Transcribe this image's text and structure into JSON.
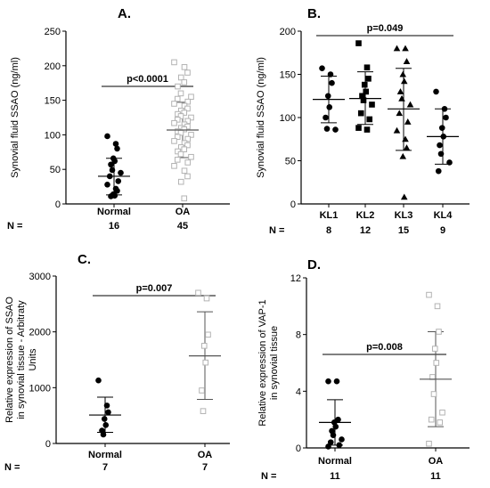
{
  "chart_data": [
    {
      "id": "A",
      "type": "scatter",
      "panel_label": "A.",
      "ylabel": "Synovial fluid SSAO (ng/ml)",
      "ylim": [
        0,
        250
      ],
      "yticks": [
        0,
        50,
        100,
        150,
        200,
        250
      ],
      "categories": [
        "Normal",
        "OA"
      ],
      "n_label": "N =",
      "n_values": [
        "16",
        "45"
      ],
      "significance": [
        {
          "text": "p<0.0001",
          "from": 0,
          "to": 1
        }
      ],
      "series": [
        {
          "category": "Normal",
          "marker": "circle-filled",
          "mean": 40,
          "sd_low": 13,
          "sd_high": 66,
          "values": [
            98,
            87,
            80,
            66,
            62,
            57,
            49,
            45,
            40,
            33,
            28,
            22,
            19,
            14,
            12,
            11
          ]
        },
        {
          "category": "OA",
          "marker": "square-open",
          "mean": 107,
          "sd_low": 67,
          "sd_high": 147,
          "values": [
            205,
            198,
            190,
            183,
            176,
            170,
            160,
            155,
            152,
            148,
            145,
            142,
            138,
            135,
            132,
            130,
            127,
            125,
            122,
            120,
            117,
            115,
            112,
            110,
            108,
            105,
            103,
            100,
            97,
            94,
            91,
            88,
            85,
            82,
            79,
            76,
            72,
            68,
            64,
            60,
            55,
            48,
            40,
            32,
            8
          ]
        }
      ]
    },
    {
      "id": "B",
      "type": "scatter",
      "panel_label": "B.",
      "ylabel": "Synovial fluid SSAO (ng/ml)",
      "ylim": [
        0,
        200
      ],
      "yticks": [
        0,
        50,
        100,
        150,
        200
      ],
      "categories": [
        "KL1",
        "KL2",
        "KL3",
        "KL4"
      ],
      "n_label": "N =",
      "n_values": [
        "8",
        "12",
        "15",
        "9"
      ],
      "significance": [
        {
          "text": "p=0.049",
          "from": 0,
          "to": 3
        }
      ],
      "series": [
        {
          "category": "KL1",
          "marker": "circle-filled",
          "mean": 121,
          "sd_low": 94,
          "sd_high": 148,
          "values": [
            157,
            150,
            140,
            125,
            112,
            100,
            87,
            86
          ]
        },
        {
          "category": "KL2",
          "marker": "square-filled",
          "mean": 122,
          "sd_low": 92,
          "sd_high": 153,
          "values": [
            186,
            158,
            145,
            138,
            130,
            125,
            120,
            115,
            105,
            98,
            88,
            86
          ]
        },
        {
          "category": "KL3",
          "marker": "triangle-filled",
          "mean": 110,
          "sd_low": 62,
          "sd_high": 157,
          "values": [
            180,
            180,
            165,
            150,
            142,
            130,
            122,
            115,
            105,
            95,
            85,
            75,
            65,
            55,
            8
          ]
        },
        {
          "category": "KL4",
          "marker": "circle-filled",
          "mean": 78,
          "sd_low": 46,
          "sd_high": 110,
          "values": [
            130,
            110,
            100,
            88,
            78,
            68,
            58,
            48,
            38
          ]
        }
      ]
    },
    {
      "id": "C",
      "type": "scatter",
      "panel_label": "C.",
      "ylabel_lines": [
        "Relative expression of SSAO",
        "in synovial tissue - Arbitraty",
        "Units"
      ],
      "ylim": [
        0,
        3000
      ],
      "yticks": [
        0,
        1000,
        2000,
        3000
      ],
      "categories": [
        "Normal",
        "OA"
      ],
      "n_label": "N =",
      "n_values": [
        "7",
        "7"
      ],
      "significance": [
        {
          "text": "p=0.007",
          "from": 0,
          "to": 1
        }
      ],
      "series": [
        {
          "category": "Normal",
          "marker": "circle-filled",
          "mean": 510,
          "sd_low": 200,
          "sd_high": 830,
          "values": [
            1130,
            680,
            560,
            440,
            330,
            230,
            160
          ]
        },
        {
          "category": "OA",
          "marker": "square-open",
          "mean": 1570,
          "sd_low": 790,
          "sd_high": 2360,
          "values": [
            2700,
            2600,
            1950,
            1750,
            1450,
            950,
            580
          ]
        }
      ]
    },
    {
      "id": "D",
      "type": "scatter",
      "panel_label": "D.",
      "ylabel_lines": [
        "Relative expression of VAP-1",
        "in synovial tissue"
      ],
      "ylim": [
        0,
        12
      ],
      "yticks": [
        0,
        4,
        8,
        12
      ],
      "categories": [
        "Normal",
        "OA"
      ],
      "n_label": "N =",
      "n_values": [
        "11",
        "11"
      ],
      "significance": [
        {
          "text": "p=0.008",
          "from": 0,
          "to": 1
        }
      ],
      "series": [
        {
          "category": "Normal",
          "marker": "circle-filled",
          "mean": 1.8,
          "sd_low": 0.2,
          "sd_high": 3.4,
          "values": [
            4.7,
            4.7,
            2.0,
            1.8,
            1.5,
            1.2,
            0.9,
            0.6,
            0.4,
            0.2,
            0.1
          ]
        },
        {
          "category": "OA",
          "marker": "square-open",
          "mean": 4.85,
          "sd_low": 1.5,
          "sd_high": 8.2,
          "values": [
            10.8,
            10.0,
            8.2,
            7.0,
            6.0,
            5.0,
            3.8,
            2.5,
            2.0,
            1.8,
            0.3
          ]
        }
      ]
    }
  ]
}
